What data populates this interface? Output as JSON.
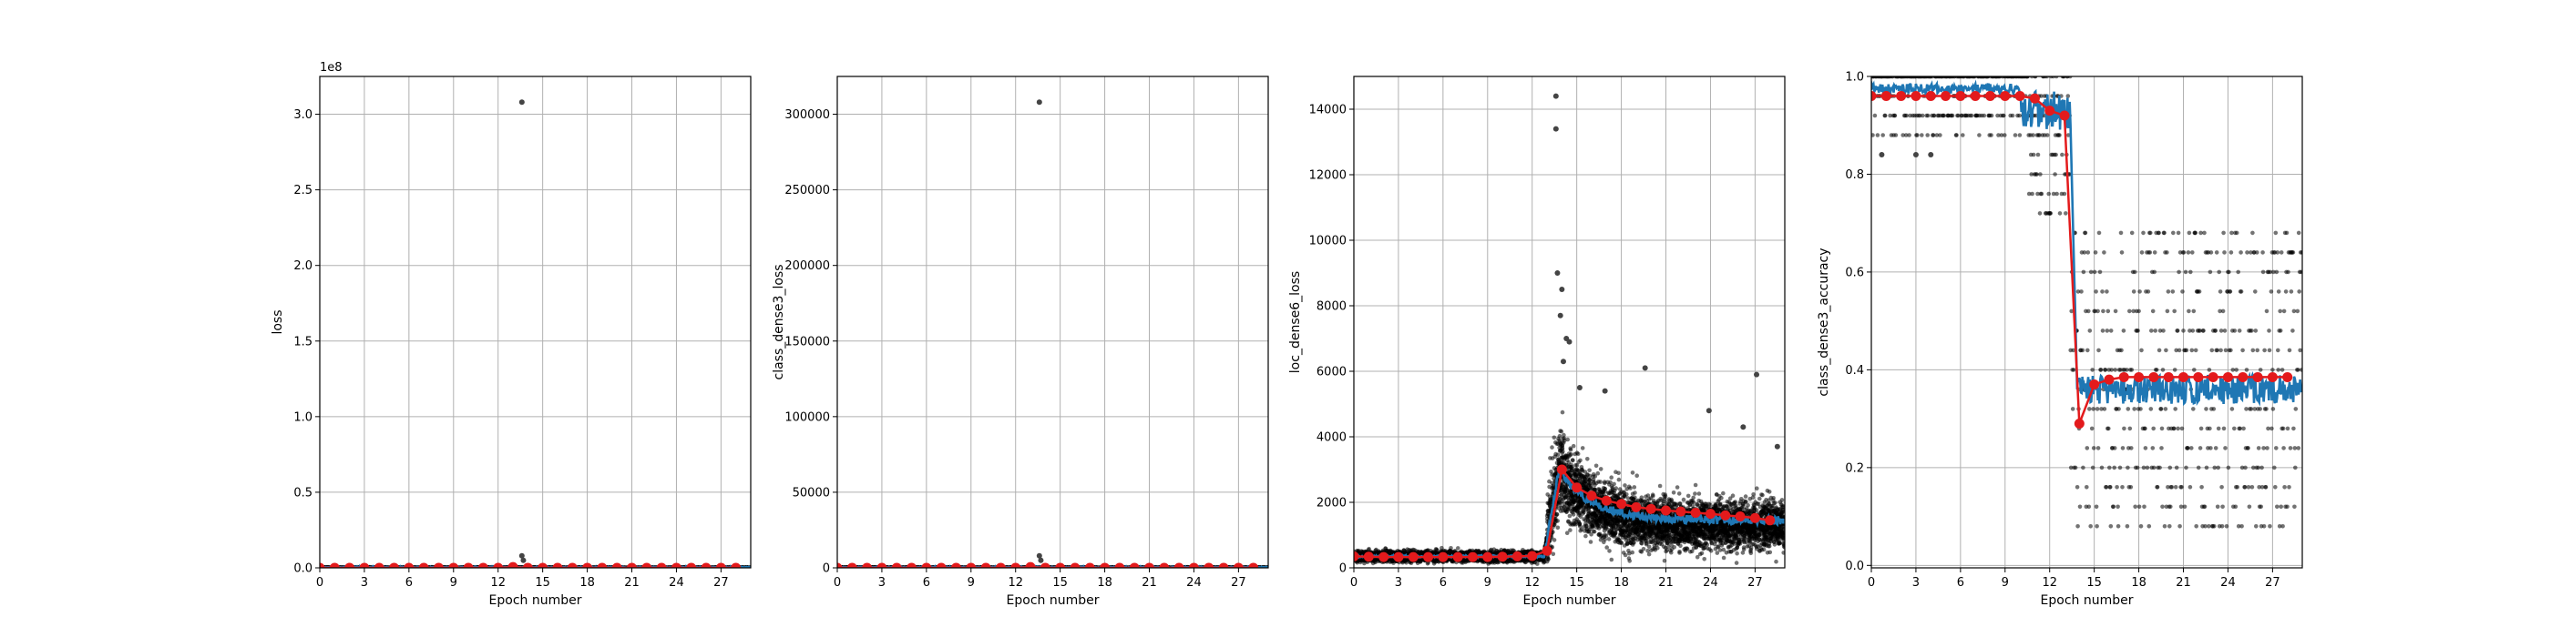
{
  "figure": {
    "background": "#ffffff",
    "colors": {
      "batch_points": "#000000",
      "batch_line": "#1f77b4",
      "epoch_mean": "#e31a1c",
      "grid": "#b0b0b0"
    }
  },
  "chart_data": [
    {
      "type": "scatter",
      "xlabel": "Epoch number",
      "ylabel": "loss",
      "offset_text": "1e8",
      "xlim": [
        0,
        29
      ],
      "ylim": [
        0,
        3.25
      ],
      "xticks": [
        0,
        3,
        6,
        9,
        12,
        15,
        18,
        21,
        24,
        27
      ],
      "yticks": [
        0.0,
        0.5,
        1.0,
        1.5,
        2.0,
        2.5,
        3.0
      ],
      "ytick_labels": [
        "0.0",
        "0.5",
        "1.0",
        "1.5",
        "2.0",
        "2.5",
        "3.0"
      ],
      "grid": true,
      "outliers": [
        [
          13.6,
          3.08
        ],
        [
          13.6,
          0.08
        ],
        [
          13.7,
          0.05
        ]
      ],
      "epoch_mean": {
        "x": [
          0,
          1,
          2,
          3,
          4,
          5,
          6,
          7,
          8,
          9,
          10,
          11,
          12,
          13,
          14,
          15,
          16,
          17,
          18,
          19,
          20,
          21,
          22,
          23,
          24,
          25,
          26,
          27,
          28
        ],
        "y": [
          0,
          0,
          0,
          0,
          0,
          0,
          0,
          0,
          0,
          0,
          0,
          0,
          0,
          0.005,
          0,
          0,
          0,
          0,
          0,
          0,
          0,
          0,
          0,
          0,
          0,
          0,
          0,
          0,
          0
        ]
      }
    },
    {
      "type": "scatter",
      "xlabel": "Epoch number",
      "ylabel": "class_dense3_loss",
      "xlim": [
        0,
        29
      ],
      "ylim": [
        0,
        325000
      ],
      "xticks": [
        0,
        3,
        6,
        9,
        12,
        15,
        18,
        21,
        24,
        27
      ],
      "yticks": [
        0,
        50000,
        100000,
        150000,
        200000,
        250000,
        300000
      ],
      "ytick_labels": [
        "0",
        "50000",
        "100000",
        "150000",
        "200000",
        "250000",
        "300000"
      ],
      "grid": true,
      "outliers": [
        [
          13.6,
          308000
        ],
        [
          13.6,
          8000
        ],
        [
          13.7,
          5000
        ]
      ],
      "epoch_mean": {
        "x": [
          0,
          1,
          2,
          3,
          4,
          5,
          6,
          7,
          8,
          9,
          10,
          11,
          12,
          13,
          14,
          15,
          16,
          17,
          18,
          19,
          20,
          21,
          22,
          23,
          24,
          25,
          26,
          27,
          28
        ],
        "y": [
          0,
          0,
          0,
          0,
          0,
          0,
          0,
          0,
          0,
          0,
          0,
          0,
          0,
          500,
          0,
          0,
          0,
          0,
          0,
          0,
          0,
          0,
          0,
          0,
          0,
          0,
          0,
          0,
          0
        ]
      }
    },
    {
      "type": "scatter",
      "xlabel": "Epoch number",
      "ylabel": "loc_dense6_loss",
      "xlim": [
        0,
        29
      ],
      "ylim": [
        0,
        15000
      ],
      "xticks": [
        0,
        3,
        6,
        9,
        12,
        15,
        18,
        21,
        24,
        27
      ],
      "yticks": [
        0,
        2000,
        4000,
        6000,
        8000,
        10000,
        12000,
        14000
      ],
      "ytick_labels": [
        "0",
        "2000",
        "4000",
        "6000",
        "8000",
        "10000",
        "12000",
        "14000"
      ],
      "grid": true,
      "outliers": [
        [
          13.6,
          14400
        ],
        [
          13.6,
          13400
        ],
        [
          13.7,
          9000
        ],
        [
          14.0,
          8500
        ],
        [
          13.9,
          7700
        ],
        [
          14.3,
          7000
        ],
        [
          14.5,
          6900
        ],
        [
          14.1,
          6300
        ],
        [
          15.2,
          5500
        ],
        [
          16.9,
          5400
        ],
        [
          19.6,
          6100
        ],
        [
          23.9,
          4800
        ],
        [
          27.1,
          5900
        ],
        [
          26.2,
          4300
        ],
        [
          28.5,
          3700
        ]
      ],
      "epoch_mean": {
        "x": [
          0,
          1,
          2,
          3,
          4,
          5,
          6,
          7,
          8,
          9,
          10,
          11,
          12,
          13,
          14,
          15,
          16,
          17,
          18,
          19,
          20,
          21,
          22,
          23,
          24,
          25,
          26,
          27,
          28
        ],
        "y": [
          350,
          340,
          330,
          330,
          330,
          330,
          330,
          330,
          330,
          330,
          340,
          350,
          360,
          520,
          3000,
          2450,
          2200,
          2050,
          1950,
          1850,
          1800,
          1750,
          1720,
          1680,
          1650,
          1600,
          1570,
          1520,
          1450
        ]
      }
    },
    {
      "type": "scatter",
      "xlabel": "Epoch number",
      "ylabel": "class_dense3_accuracy",
      "xlim": [
        0,
        29
      ],
      "ylim": [
        -0.005,
        1.0
      ],
      "xticks": [
        0,
        3,
        6,
        9,
        12,
        15,
        18,
        21,
        24,
        27
      ],
      "yticks": [
        0.0,
        0.2,
        0.4,
        0.6,
        0.8,
        1.0
      ],
      "ytick_labels": [
        "0.0",
        "0.2",
        "0.4",
        "0.6",
        "0.8",
        "1.0"
      ],
      "grid": true,
      "outliers": [
        [
          0.7,
          0.84
        ],
        [
          3.0,
          0.84
        ],
        [
          4.0,
          0.84
        ]
      ],
      "epoch_mean": {
        "x": [
          0,
          1,
          2,
          3,
          4,
          5,
          6,
          7,
          8,
          9,
          10,
          11,
          12,
          13,
          14,
          15,
          16,
          17,
          18,
          19,
          20,
          21,
          22,
          23,
          24,
          25,
          26,
          27,
          28
        ],
        "y": [
          0.96,
          0.96,
          0.96,
          0.96,
          0.96,
          0.96,
          0.96,
          0.96,
          0.96,
          0.96,
          0.96,
          0.955,
          0.93,
          0.92,
          0.29,
          0.37,
          0.38,
          0.385,
          0.385,
          0.385,
          0.385,
          0.385,
          0.385,
          0.385,
          0.385,
          0.385,
          0.385,
          0.385,
          0.385
        ]
      }
    }
  ]
}
